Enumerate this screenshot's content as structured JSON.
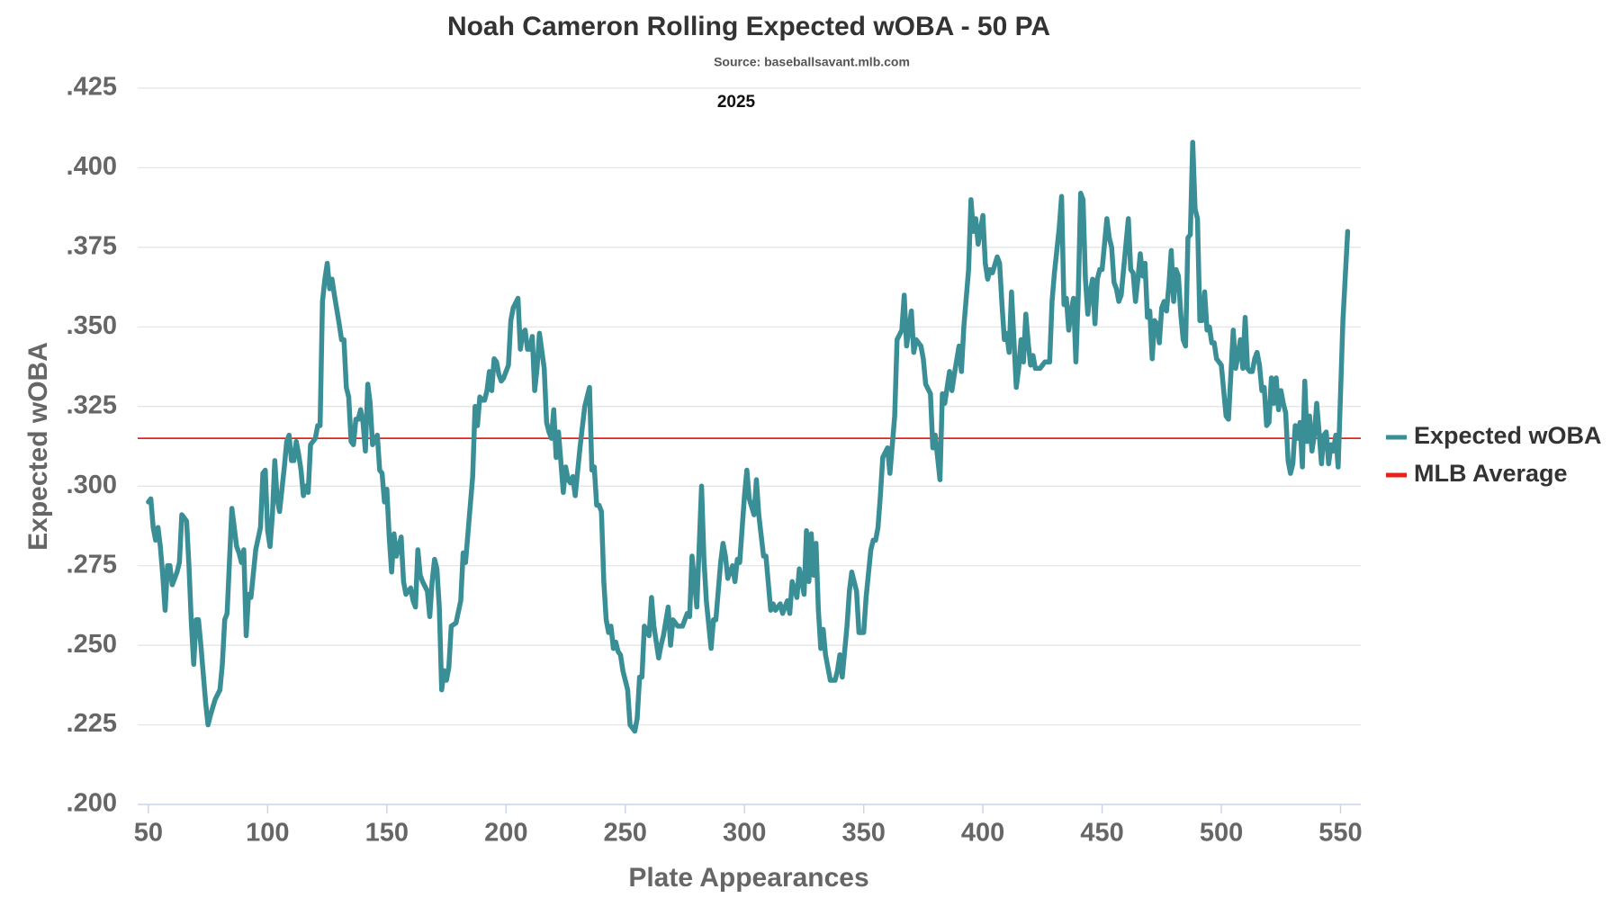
{
  "chart_data": {
    "type": "line",
    "title": "Noah Cameron Rolling Expected wOBA - 50 PA",
    "subtitle": "Source: baseballsavant.mlb.com",
    "annotation": "2025",
    "x_label": "Plate Appearances",
    "y_label": "Expected wOBA",
    "xlim": [
      45.5,
      558.5
    ],
    "ylim": [
      0.2,
      0.425
    ],
    "xticks": [
      50,
      100,
      150,
      200,
      250,
      300,
      350,
      400,
      450,
      500,
      550
    ],
    "yticks": [
      {
        "value": 0.2,
        "label": ".200"
      },
      {
        "value": 0.225,
        "label": ".225"
      },
      {
        "value": 0.25,
        "label": ".250"
      },
      {
        "value": 0.275,
        "label": ".275"
      },
      {
        "value": 0.3,
        "label": ".300"
      },
      {
        "value": 0.325,
        "label": ".325"
      },
      {
        "value": 0.35,
        "label": ".350"
      },
      {
        "value": 0.375,
        "label": ".375"
      },
      {
        "value": 0.4,
        "label": ".400"
      },
      {
        "value": 0.425,
        "label": ".425"
      }
    ],
    "grid": true,
    "legend": "right",
    "reference_lines": [
      {
        "name": "MLB Average",
        "value": 0.315,
        "color": "#e8201a"
      }
    ],
    "x": [
      50,
      51,
      52,
      53,
      54,
      55,
      56,
      57,
      58,
      59,
      60,
      62,
      63,
      64,
      66,
      67,
      68,
      69,
      70,
      71,
      72,
      74,
      75,
      76,
      78,
      80,
      81,
      82,
      83,
      85,
      87,
      88,
      89,
      90,
      91,
      92,
      93,
      95,
      97,
      98,
      99,
      100,
      101,
      102,
      103,
      104,
      105,
      107,
      108,
      109,
      110,
      111,
      112,
      113,
      114,
      115,
      116,
      117,
      118,
      120,
      121,
      122,
      123,
      124,
      125,
      126,
      127,
      128,
      130,
      131,
      132,
      133,
      134,
      135,
      136,
      137,
      138,
      139,
      140,
      141,
      142,
      143,
      144,
      146,
      147,
      148,
      149,
      150,
      151,
      152,
      153,
      154,
      156,
      157,
      158,
      159,
      160,
      161,
      162,
      163,
      164,
      165,
      167,
      168,
      169,
      170,
      171,
      172,
      173,
      174,
      175,
      176,
      177,
      179,
      181,
      182,
      183,
      184,
      186,
      187,
      188,
      189,
      190,
      191,
      192,
      193,
      194,
      195,
      196,
      197,
      198,
      199,
      201,
      202,
      203,
      205,
      206,
      207,
      208,
      209,
      210,
      211,
      212,
      213,
      214,
      216,
      217,
      218,
      219,
      220,
      221,
      222,
      224,
      225,
      226,
      227,
      228,
      229,
      231,
      233,
      235,
      236,
      237,
      238,
      239,
      240,
      241,
      242,
      243,
      244,
      245,
      246,
      247,
      248,
      249,
      251,
      252,
      254,
      255,
      256,
      257,
      258,
      260,
      261,
      262,
      264,
      265,
      266,
      268,
      269,
      270,
      272,
      273,
      274,
      276,
      277,
      278,
      280,
      282,
      283,
      284,
      286,
      287,
      288,
      290,
      291,
      292,
      293,
      295,
      296,
      297,
      298,
      300,
      301,
      302,
      304,
      305,
      306,
      308,
      309,
      311,
      312,
      313,
      315,
      316,
      318,
      319,
      320,
      322,
      323,
      325,
      326,
      327,
      328,
      329,
      330,
      331,
      332,
      333,
      334,
      336,
      338,
      339,
      340,
      341,
      342,
      343,
      344,
      345,
      347,
      348,
      349,
      350,
      351,
      353,
      354,
      355,
      356,
      357,
      358,
      360,
      361,
      363,
      364,
      366,
      367,
      368,
      370,
      371,
      372,
      374,
      375,
      376,
      378,
      379,
      380,
      382,
      383,
      384,
      386,
      387,
      388,
      390,
      391,
      392,
      394,
      395,
      396,
      397,
      398,
      400,
      401,
      402,
      403,
      404,
      406,
      407,
      408,
      409,
      410,
      411,
      412,
      414,
      415,
      416,
      417,
      418,
      419,
      420,
      421,
      422,
      424,
      426,
      428,
      429,
      430,
      432,
      433,
      434,
      435,
      436,
      437,
      438,
      439,
      440,
      441,
      442,
      443,
      444,
      445,
      446,
      447,
      448,
      449,
      450,
      452,
      453,
      454,
      455,
      456,
      457,
      458,
      461,
      462,
      463,
      464,
      465,
      466,
      467,
      468,
      469,
      470,
      471,
      472,
      473,
      474,
      475,
      476,
      477,
      478,
      479,
      480,
      481,
      482,
      483,
      484,
      485,
      486,
      487,
      488,
      489,
      490,
      491,
      492,
      493,
      494,
      495,
      496,
      497,
      498,
      499,
      500,
      501,
      502,
      503,
      505,
      506,
      507,
      508,
      509,
      510,
      511,
      512,
      513,
      514,
      515,
      516,
      517,
      518,
      519,
      520,
      521,
      522,
      523,
      524,
      525,
      526,
      527,
      528,
      529,
      530,
      531,
      532,
      533,
      534,
      535,
      536,
      537,
      538,
      539,
      540,
      541,
      542,
      543,
      544,
      545,
      546,
      547,
      548,
      549,
      551,
      552,
      553
    ],
    "series": [
      {
        "name": "Expected wOBA",
        "color": "#3a8f96",
        "values": [
          0.295,
          0.296,
          0.287,
          0.283,
          0.287,
          0.281,
          0.272,
          0.261,
          0.275,
          0.275,
          0.269,
          0.273,
          0.276,
          0.291,
          0.289,
          0.275,
          0.257,
          0.244,
          0.258,
          0.258,
          0.25,
          0.232,
          0.225,
          0.228,
          0.233,
          0.236,
          0.244,
          0.258,
          0.26,
          0.293,
          0.281,
          0.279,
          0.276,
          0.28,
          0.253,
          0.266,
          0.265,
          0.28,
          0.287,
          0.304,
          0.305,
          0.286,
          0.281,
          0.291,
          0.308,
          0.296,
          0.292,
          0.306,
          0.314,
          0.316,
          0.308,
          0.308,
          0.314,
          0.31,
          0.305,
          0.297,
          0.3,
          0.298,
          0.313,
          0.315,
          0.319,
          0.319,
          0.358,
          0.365,
          0.37,
          0.362,
          0.365,
          0.36,
          0.351,
          0.346,
          0.346,
          0.331,
          0.328,
          0.314,
          0.313,
          0.321,
          0.321,
          0.324,
          0.32,
          0.311,
          0.332,
          0.326,
          0.313,
          0.316,
          0.305,
          0.304,
          0.295,
          0.299,
          0.284,
          0.273,
          0.285,
          0.278,
          0.284,
          0.27,
          0.266,
          0.267,
          0.268,
          0.264,
          0.262,
          0.28,
          0.272,
          0.27,
          0.267,
          0.259,
          0.27,
          0.277,
          0.274,
          0.262,
          0.236,
          0.242,
          0.239,
          0.243,
          0.256,
          0.257,
          0.264,
          0.279,
          0.276,
          0.285,
          0.303,
          0.325,
          0.319,
          0.328,
          0.327,
          0.327,
          0.33,
          0.336,
          0.33,
          0.34,
          0.339,
          0.335,
          0.333,
          0.334,
          0.338,
          0.352,
          0.356,
          0.359,
          0.343,
          0.348,
          0.349,
          0.343,
          0.343,
          0.347,
          0.33,
          0.337,
          0.348,
          0.337,
          0.32,
          0.317,
          0.315,
          0.324,
          0.309,
          0.317,
          0.298,
          0.306,
          0.302,
          0.301,
          0.303,
          0.297,
          0.312,
          0.325,
          0.331,
          0.305,
          0.306,
          0.294,
          0.294,
          0.292,
          0.27,
          0.258,
          0.254,
          0.256,
          0.249,
          0.251,
          0.248,
          0.247,
          0.242,
          0.236,
          0.225,
          0.223,
          0.227,
          0.24,
          0.24,
          0.256,
          0.253,
          0.265,
          0.256,
          0.246,
          0.25,
          0.253,
          0.262,
          0.25,
          0.258,
          0.256,
          0.256,
          0.256,
          0.26,
          0.259,
          0.278,
          0.262,
          0.3,
          0.277,
          0.264,
          0.249,
          0.258,
          0.258,
          0.276,
          0.282,
          0.278,
          0.271,
          0.275,
          0.27,
          0.277,
          0.276,
          0.297,
          0.305,
          0.296,
          0.291,
          0.302,
          0.291,
          0.278,
          0.278,
          0.261,
          0.263,
          0.261,
          0.263,
          0.26,
          0.264,
          0.26,
          0.27,
          0.265,
          0.274,
          0.266,
          0.286,
          0.27,
          0.285,
          0.272,
          0.282,
          0.261,
          0.249,
          0.255,
          0.247,
          0.239,
          0.239,
          0.242,
          0.247,
          0.24,
          0.248,
          0.256,
          0.267,
          0.273,
          0.267,
          0.254,
          0.254,
          0.254,
          0.265,
          0.28,
          0.283,
          0.283,
          0.287,
          0.297,
          0.309,
          0.312,
          0.304,
          0.322,
          0.346,
          0.349,
          0.36,
          0.344,
          0.355,
          0.342,
          0.346,
          0.344,
          0.34,
          0.332,
          0.329,
          0.312,
          0.316,
          0.302,
          0.329,
          0.326,
          0.336,
          0.33,
          0.335,
          0.344,
          0.336,
          0.35,
          0.368,
          0.39,
          0.38,
          0.384,
          0.376,
          0.385,
          0.37,
          0.365,
          0.368,
          0.367,
          0.372,
          0.37,
          0.357,
          0.346,
          0.348,
          0.342,
          0.361,
          0.331,
          0.337,
          0.346,
          0.339,
          0.354,
          0.345,
          0.338,
          0.341,
          0.337,
          0.337,
          0.339,
          0.339,
          0.358,
          0.367,
          0.381,
          0.391,
          0.357,
          0.359,
          0.349,
          0.355,
          0.359,
          0.339,
          0.36,
          0.392,
          0.39,
          0.365,
          0.354,
          0.361,
          0.365,
          0.351,
          0.365,
          0.368,
          0.368,
          0.384,
          0.378,
          0.375,
          0.364,
          0.362,
          0.358,
          0.36,
          0.384,
          0.368,
          0.367,
          0.358,
          0.365,
          0.373,
          0.366,
          0.37,
          0.353,
          0.355,
          0.34,
          0.352,
          0.351,
          0.345,
          0.356,
          0.358,
          0.355,
          0.363,
          0.374,
          0.358,
          0.368,
          0.366,
          0.354,
          0.346,
          0.344,
          0.378,
          0.379,
          0.408,
          0.387,
          0.384,
          0.352,
          0.352,
          0.361,
          0.349,
          0.35,
          0.345,
          0.345,
          0.34,
          0.339,
          0.338,
          0.33,
          0.322,
          0.321,
          0.349,
          0.337,
          0.341,
          0.346,
          0.337,
          0.353,
          0.337,
          0.336,
          0.336,
          0.34,
          0.342,
          0.338,
          0.33,
          0.331,
          0.319,
          0.32,
          0.334,
          0.326,
          0.334,
          0.324,
          0.33,
          0.326,
          0.323,
          0.308,
          0.304,
          0.307,
          0.319,
          0.315,
          0.32,
          0.306,
          0.333,
          0.314,
          0.322,
          0.311,
          0.316,
          0.326,
          0.317,
          0.307,
          0.316,
          0.317,
          0.307,
          0.313,
          0.311,
          0.316,
          0.306,
          0.352,
          0.366,
          0.38
        ]
      }
    ]
  }
}
